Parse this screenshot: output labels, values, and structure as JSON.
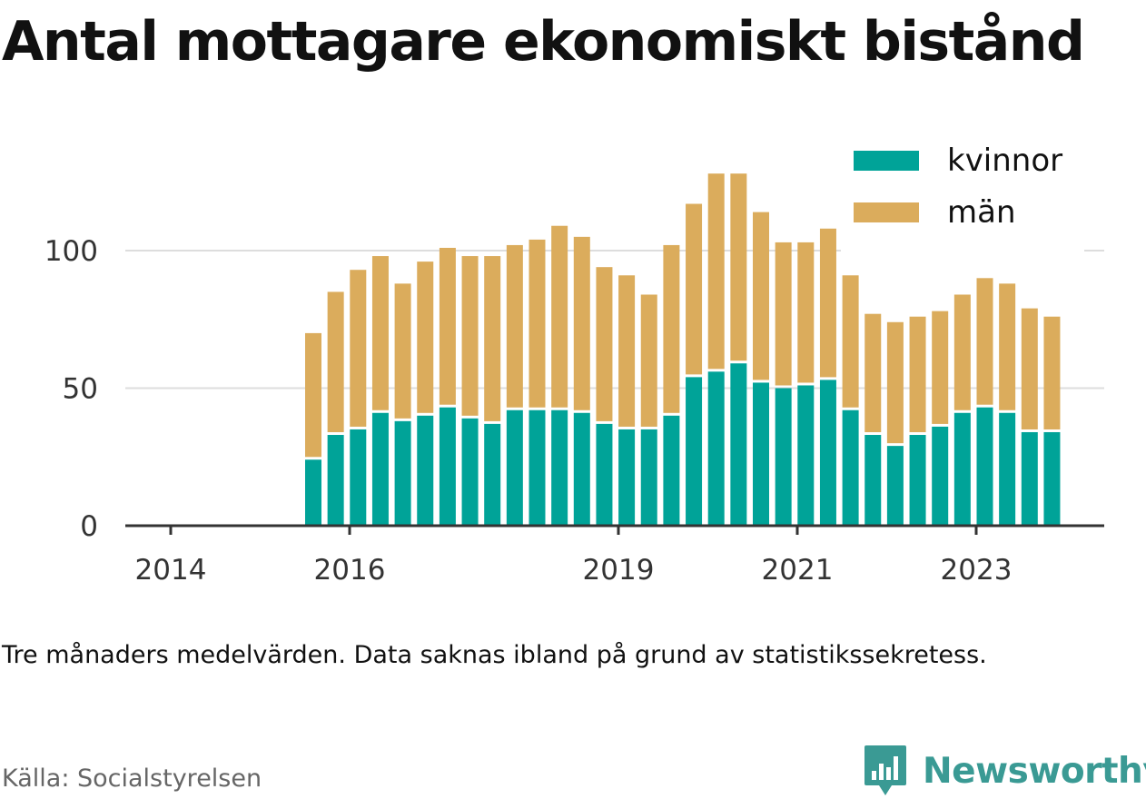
{
  "title": "Antal mottagare ekonomiskt bistånd",
  "note": "Tre månaders medelvärden. Data saknas ibland på grund av statistikssekretess.",
  "source": "Källa: Socialstyrelsen",
  "brand": {
    "name": "Newsworthy",
    "logo_icon": "bar-chart-bubble-icon"
  },
  "colors": {
    "kvinnor": "#00a398",
    "man": "#dbac5c",
    "grid": "#dddddd",
    "axis": "#333333",
    "brand": "#3a9a94"
  },
  "chart_data": {
    "type": "bar",
    "stacked": true,
    "x_ticks": [
      "2014",
      "2016",
      "2019",
      "2021",
      "2023"
    ],
    "y_ticks": [
      0,
      50,
      100
    ],
    "ylim": [
      0,
      130
    ],
    "grid": "horizontal",
    "legend_position": "top-right",
    "series": [
      {
        "name": "kvinnor",
        "values": [
          24,
          33,
          35,
          41,
          38,
          40,
          43,
          39,
          37,
          42,
          42,
          42,
          41,
          37,
          35,
          35,
          40,
          54,
          56,
          59,
          52,
          50,
          51,
          53,
          42,
          33,
          29,
          33,
          36,
          41,
          43,
          41,
          34,
          34
        ]
      },
      {
        "name": "män",
        "values": [
          46,
          52,
          58,
          57,
          50,
          56,
          58,
          59,
          61,
          60,
          62,
          67,
          64,
          57,
          56,
          49,
          62,
          63,
          72,
          69,
          62,
          53,
          52,
          55,
          49,
          44,
          45,
          43,
          42,
          43,
          47,
          47,
          45,
          42
        ]
      }
    ]
  }
}
